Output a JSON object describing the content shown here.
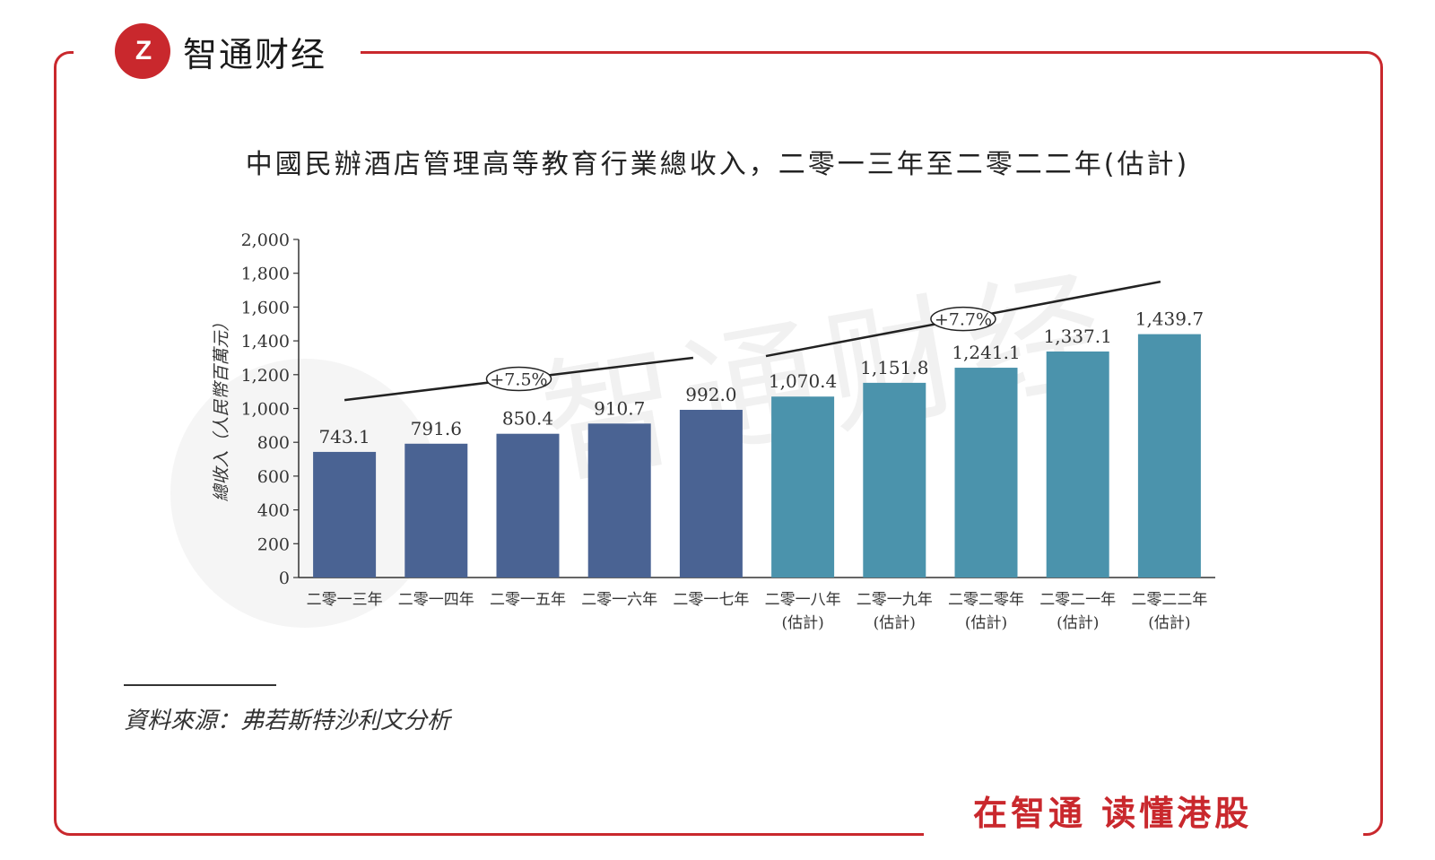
{
  "brand": {
    "logo_mark": "Z",
    "name": "智通财经",
    "slogan": "在智通 读懂港股"
  },
  "watermark": "智通财经",
  "source_text": "資料來源：弗若斯特沙利文分析",
  "colors": {
    "actual": "#4a6393",
    "estimate": "#4b93ac",
    "frame": "#c9282d"
  },
  "chart_data": {
    "type": "bar",
    "title": "中國民辦酒店管理高等教育行業總收入，二零一三年至二零二二年(估計)",
    "ylabel": "總收入（人民幣百萬元）",
    "xlabel": "",
    "ylim": [
      0,
      2000
    ],
    "yticks": [
      "0",
      "200",
      "400",
      "600",
      "800",
      "1,000",
      "1,200",
      "1,400",
      "1,600",
      "1,800",
      "2,000"
    ],
    "ytick_values": [
      0,
      200,
      400,
      600,
      800,
      1000,
      1200,
      1400,
      1600,
      1800,
      2000
    ],
    "categories": [
      "二零一三年",
      "二零一四年",
      "二零一五年",
      "二零一六年",
      "二零一七年",
      "二零一八年",
      "二零一九年",
      "二零二零年",
      "二零二一年",
      "二零二二年"
    ],
    "category_sub": [
      "",
      "",
      "",
      "",
      "",
      "(估計)",
      "(估計)",
      "(估計)",
      "(估計)",
      "(估計)"
    ],
    "values": [
      743.1,
      791.6,
      850.4,
      910.7,
      992.0,
      1070.4,
      1151.8,
      1241.1,
      1337.1,
      1439.7
    ],
    "value_labels": [
      "743.1",
      "791.6",
      "850.4",
      "910.7",
      "992.0",
      "1,070.4",
      "1,151.8",
      "1,241.1",
      "1,337.1",
      "1,439.7"
    ],
    "estimated": [
      false,
      false,
      false,
      false,
      false,
      true,
      true,
      true,
      true,
      true
    ],
    "cagr": [
      {
        "label": "+7.5%",
        "from_value": 1050,
        "to_value": 1300
      },
      {
        "label": "+7.7%",
        "from_value": 1310,
        "to_value": 1750
      }
    ]
  }
}
